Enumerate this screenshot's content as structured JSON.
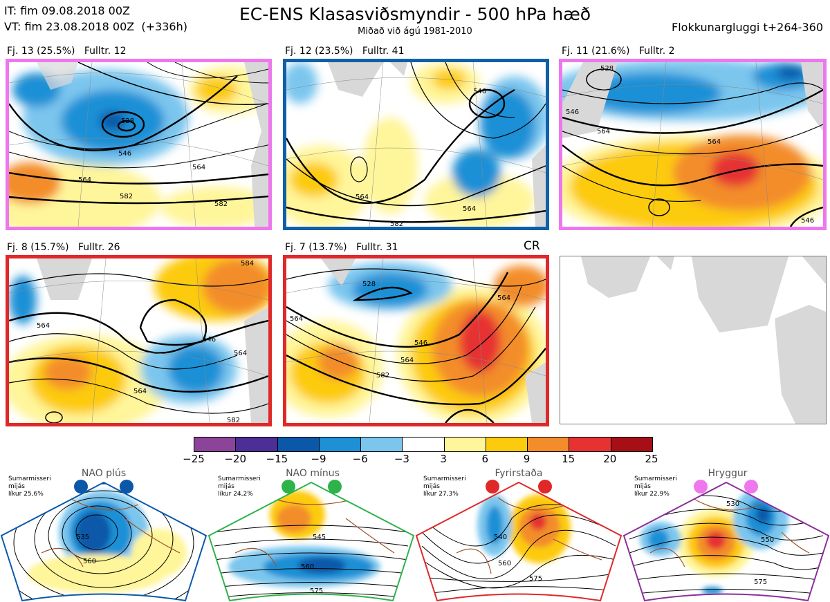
{
  "header": {
    "init_time": "IT: fim 09.08.2018 00Z",
    "valid_time": "VT: fim 23.08.2018 00Z  (+336h)",
    "title": "EC-ENS Klasasviðsmyndir - 500 hPa hæð",
    "subtitle": "Miðað við ágú 1981-2010",
    "window": "Flokkunargluggi t+264-360"
  },
  "clusters": [
    {
      "label": "Fj. 13 (25.5%)",
      "representative": "Fulltr. 12",
      "border_color": "#ee77ee",
      "contour_labels": [
        "528",
        "546",
        "564",
        "582",
        "582",
        "564"
      ]
    },
    {
      "label": "Fj. 12 (23.5%)",
      "representative": "Fulltr. 41",
      "border_color": "#1060a8",
      "contour_labels": [
        "546",
        "564",
        "564",
        "582"
      ]
    },
    {
      "label": "Fj. 11 (21.6%)",
      "representative": "Fulltr. 2",
      "border_color": "#ee77ee",
      "contour_labels": [
        "528",
        "546",
        "564",
        "564",
        "546"
      ]
    },
    {
      "label": "Fj. 8 (15.7%)",
      "representative": "Fulltr. 26",
      "border_color": "#e02828",
      "contour_labels": [
        "564",
        "564",
        "546",
        "564",
        "584",
        "582"
      ]
    },
    {
      "label": "Fj. 7 (13.7%)",
      "representative": "Fulltr. 31",
      "border_color": "#e02828",
      "contour_labels": [
        "528",
        "564",
        "564",
        "546",
        "564",
        "582"
      ]
    }
  ],
  "climatology_tag": "CR",
  "colorbar": {
    "ticks": [
      "−25",
      "−20",
      "−15",
      "−9",
      "−6",
      "−3",
      "3",
      "6",
      "9",
      "15",
      "20",
      "25"
    ],
    "colors": [
      "#8b449a",
      "#4b2f96",
      "#0b58a8",
      "#1e90d6",
      "#7cc6ee",
      "#ffffff",
      "#fff59a",
      "#fdcb0e",
      "#f38d2c",
      "#e63232",
      "#a50f15"
    ]
  },
  "regimes": [
    {
      "name": "NAO plús",
      "note": "Sumarmisseri\nmijás\nlíkur 25,6%",
      "color": "#0b58a8",
      "contour_labels": [
        "535",
        "560"
      ]
    },
    {
      "name": "NAO mínus",
      "note": "Sumarmisseri\nmijás\nlíkur 24,2%",
      "color": "#2db34a",
      "contour_labels": [
        "545",
        "560",
        "575"
      ]
    },
    {
      "name": "Fyrirstaða",
      "note": "Sumarmisseri\nmijás\nlíkur 27,3%",
      "color": "#e02828",
      "contour_labels": [
        "540",
        "560",
        "575"
      ]
    },
    {
      "name": "Hryggur",
      "note": "Sumarmisseri\nmijás\nlíkur 22,9%",
      "color": "#ee77ee",
      "contour_labels": [
        "530",
        "550",
        "575"
      ]
    }
  ]
}
